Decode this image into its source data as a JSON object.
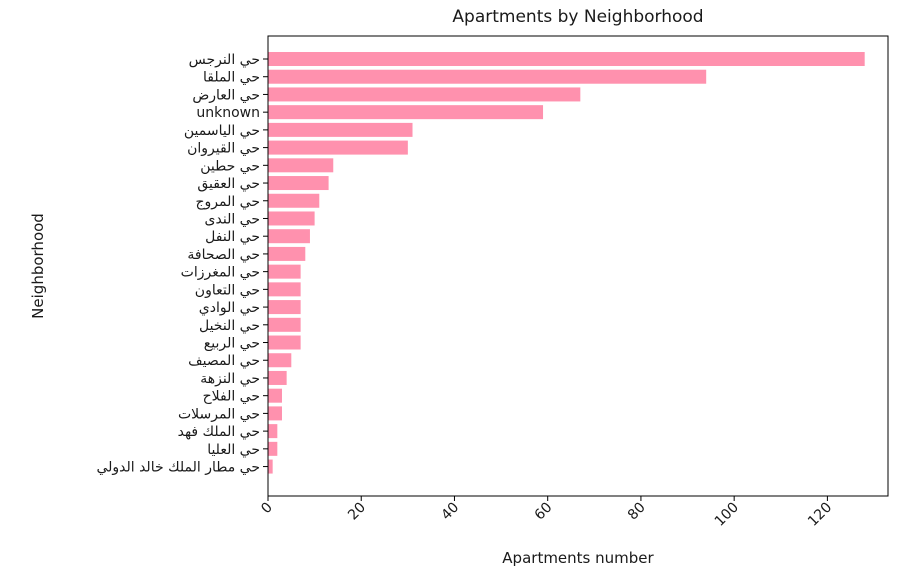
{
  "chart_data": {
    "type": "bar",
    "orientation": "horizontal",
    "title": "Apartments by Neighborhood",
    "xlabel": "Apartments number",
    "ylabel": "Neighborhood",
    "xlim": [
      0,
      133
    ],
    "xticks": [
      0,
      20,
      40,
      60,
      80,
      100,
      120
    ],
    "grid": false,
    "bar_color": "#ff91ae",
    "categories": [
      "حي النرجس",
      "حي الملقا",
      "حي العارض",
      "unknown",
      "حي الياسمين",
      "حي القيروان",
      "حي حطين",
      "حي العقيق",
      "حي المروج",
      "حي الندى",
      "حي النفل",
      "حي الصحافة",
      "حي المغرزات",
      "حي التعاون",
      "حي الوادي",
      "حي النخيل",
      "حي الربيع",
      "حي المصيف",
      "حي النزهة",
      "حي الفلاح",
      "حي المرسلات",
      "حي الملك فهد",
      "حي العليا",
      "حي مطار الملك خالد الدولي"
    ],
    "values": [
      128,
      94,
      67,
      59,
      31,
      30,
      14,
      13,
      11,
      10,
      9,
      8,
      7,
      7,
      7,
      7,
      7,
      5,
      4,
      3,
      3,
      2,
      2,
      1
    ]
  }
}
